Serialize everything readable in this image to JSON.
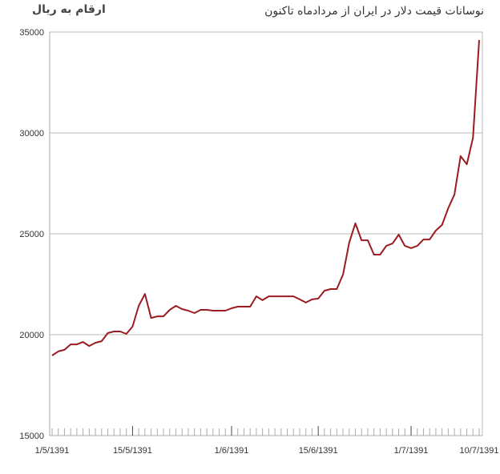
{
  "chart_data": {
    "type": "line",
    "title": "نوسانات قیمت دلار در ایران از مردادماه تاکنون",
    "unit_label": "ارقام به ریال",
    "ylim": [
      15000,
      35000
    ],
    "y_ticks": [
      15000,
      20000,
      25000,
      30000,
      35000
    ],
    "grid": "horizontal",
    "line_color": "#9b1c20",
    "x_tick_labels": [
      {
        "label": "1/5/1391",
        "index": 0
      },
      {
        "label": "15/5/1391",
        "index": 13
      },
      {
        "label": "1/6/1391",
        "index": 29
      },
      {
        "label": "15/6/1391",
        "index": 43
      },
      {
        "label": "1/7/1391",
        "index": 58
      },
      {
        "label": "10/7/1391",
        "index": 69
      }
    ],
    "values": [
      18970,
      19170,
      19250,
      19520,
      19520,
      19640,
      19440,
      19600,
      19680,
      20080,
      20160,
      20160,
      20040,
      20400,
      21430,
      22020,
      20830,
      20910,
      20910,
      21230,
      21430,
      21270,
      21190,
      21070,
      21230,
      21230,
      21190,
      21190,
      21190,
      21310,
      21390,
      21390,
      21390,
      21900,
      21710,
      21900,
      21900,
      21900,
      21900,
      21900,
      21750,
      21590,
      21750,
      21790,
      22180,
      22260,
      22260,
      22980,
      24560,
      25520,
      24680,
      24680,
      23970,
      23970,
      24400,
      24520,
      24960,
      24400,
      24290,
      24400,
      24720,
      24720,
      25160,
      25440,
      26270,
      26940,
      28850,
      28450,
      29760,
      34600
    ]
  }
}
